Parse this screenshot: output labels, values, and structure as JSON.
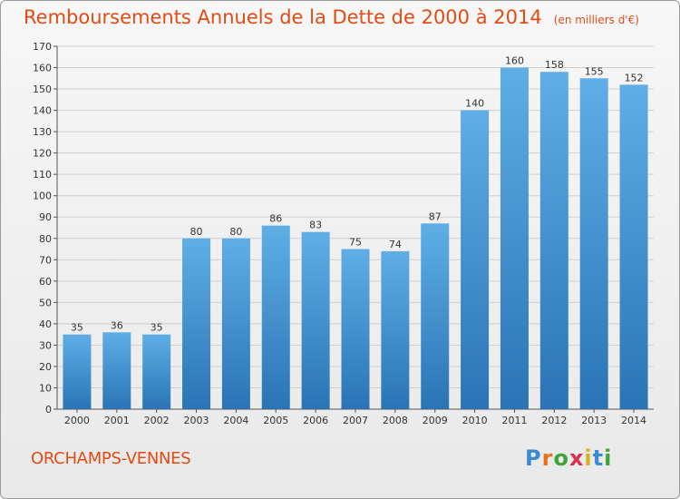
{
  "title": "Remboursements Annuels de la Dette de 2000 à 2014",
  "unit_note": "(en milliers d'€)",
  "commune": "ORCHAMPS-VENNES",
  "logo": {
    "letters": [
      "P",
      "r",
      "o",
      "x",
      "i",
      "t",
      "i"
    ],
    "colors": [
      "#3a8ad6",
      "#e8721c",
      "#3fa53a",
      "#d8304f",
      "#d6b21d",
      "#3a8ad6",
      "#3fa53a"
    ]
  },
  "colors": {
    "bar_light": "#5faee6",
    "bar_dark": "#2a74b5",
    "title": "#e24b13",
    "grid": "#cfcfcf",
    "axis": "#555555"
  },
  "chart_data": {
    "type": "bar",
    "categories": [
      "2000",
      "2001",
      "2002",
      "2003",
      "2004",
      "2005",
      "2006",
      "2007",
      "2008",
      "2009",
      "2010",
      "2011",
      "2012",
      "2013",
      "2014"
    ],
    "values": [
      35,
      36,
      35,
      80,
      80,
      86,
      83,
      75,
      74,
      87,
      140,
      160,
      158,
      155,
      152
    ],
    "ylim": [
      0,
      170
    ],
    "yticks": [
      0,
      10,
      20,
      30,
      40,
      50,
      60,
      70,
      80,
      90,
      100,
      110,
      120,
      130,
      140,
      150,
      160,
      170
    ],
    "grid": true,
    "data_labels": true,
    "legend": "none"
  }
}
